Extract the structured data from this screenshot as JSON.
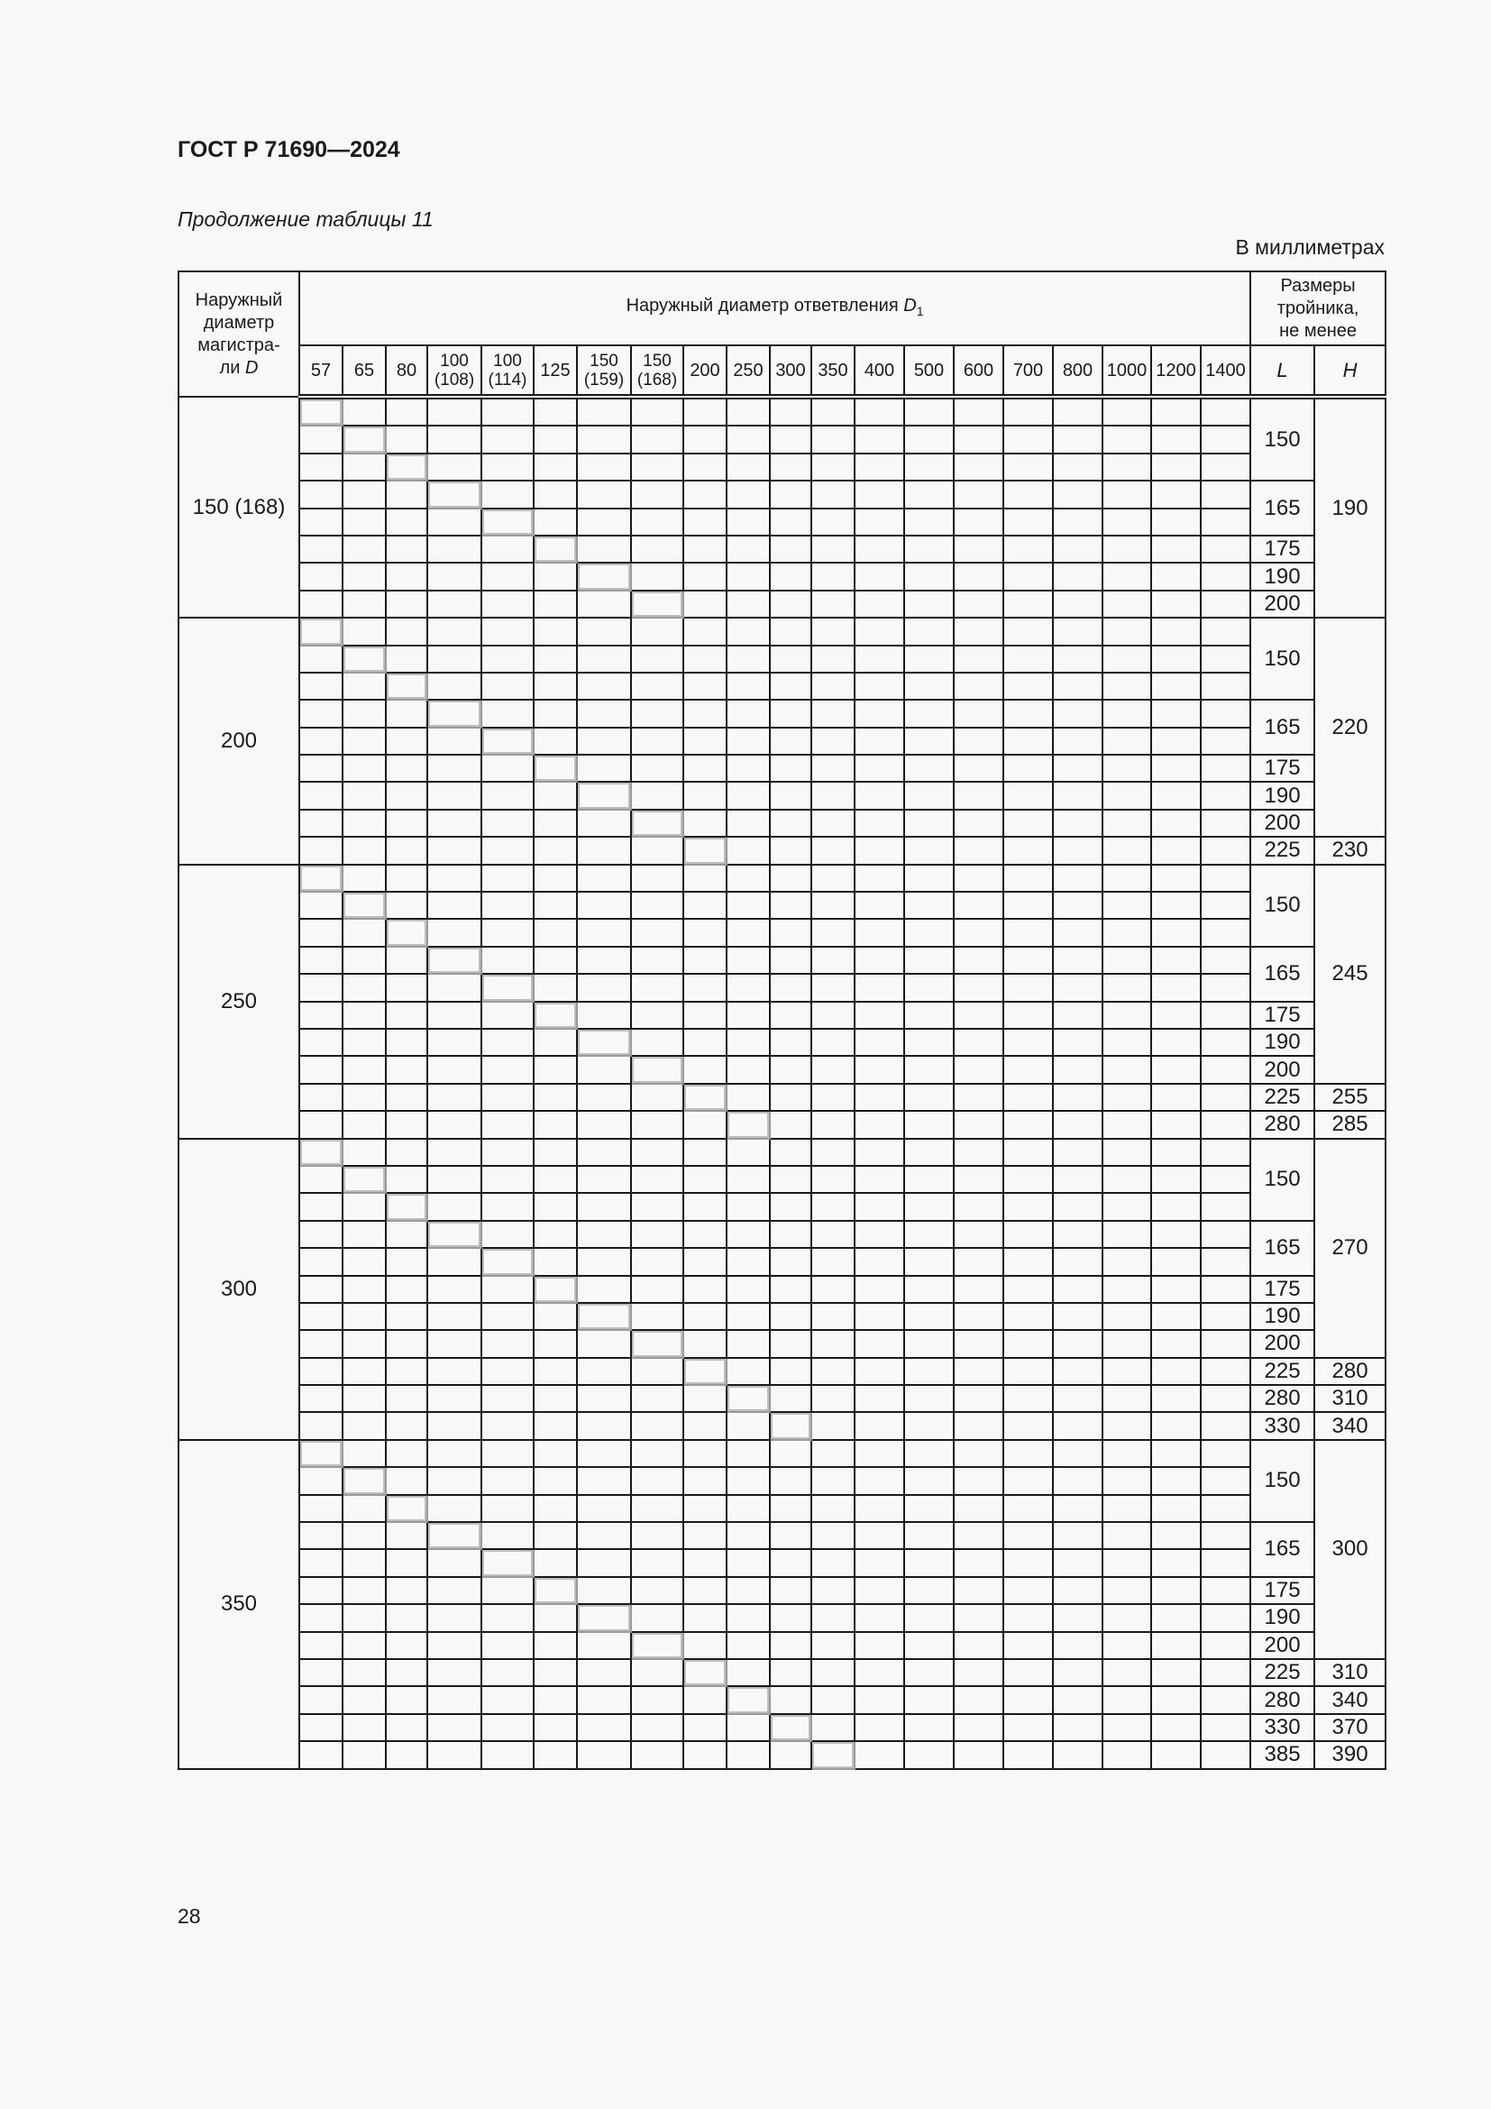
{
  "header": {
    "title": "ГОСТ Р 71690—2024",
    "subtitle": "Продолжение таблицы 11",
    "units": "В миллиметрах"
  },
  "table": {
    "col_main_diameter": [
      "Наружный",
      "диаметр",
      "магистра-",
      "ли"
    ],
    "col_main_diameter_symbol": "D",
    "col_branch": "Наружный диаметр ответвления",
    "col_branch_symbol": "D",
    "col_branch_subscript": "1",
    "col_sizes": [
      "Размеры",
      "тройника,",
      "не менее"
    ],
    "col_L": "L",
    "col_H": "H",
    "branch_columns": [
      [
        "57"
      ],
      [
        "65"
      ],
      [
        "80"
      ],
      [
        "100",
        "(108)"
      ],
      [
        "100",
        "(114)"
      ],
      [
        "125"
      ],
      [
        "150",
        "(159)"
      ],
      [
        "150",
        "(168)"
      ],
      [
        "200"
      ],
      [
        "250"
      ],
      [
        "300"
      ],
      [
        "350"
      ],
      [
        "400"
      ],
      [
        "500"
      ],
      [
        "600"
      ],
      [
        "700"
      ],
      [
        "800"
      ],
      [
        "1000"
      ],
      [
        "1200"
      ],
      [
        "1400"
      ]
    ],
    "groups": [
      {
        "D": "150 (168)",
        "rows": 8,
        "L": [
          [
            "150",
            3
          ],
          [
            "165",
            2
          ],
          [
            "175",
            1
          ],
          [
            "190",
            1
          ],
          [
            "200",
            1
          ]
        ],
        "H": [
          [
            "190",
            8
          ]
        ]
      },
      {
        "D": "200",
        "rows": 9,
        "L": [
          [
            "150",
            3
          ],
          [
            "165",
            2
          ],
          [
            "175",
            1
          ],
          [
            "190",
            1
          ],
          [
            "200",
            1
          ],
          [
            "225",
            1
          ]
        ],
        "H": [
          [
            "220",
            8
          ],
          [
            "230",
            1
          ]
        ]
      },
      {
        "D": "250",
        "rows": 10,
        "L": [
          [
            "150",
            3
          ],
          [
            "165",
            2
          ],
          [
            "175",
            1
          ],
          [
            "190",
            1
          ],
          [
            "200",
            1
          ],
          [
            "225",
            1
          ],
          [
            "280",
            1
          ]
        ],
        "H": [
          [
            "245",
            8
          ],
          [
            "255",
            1
          ],
          [
            "285",
            1
          ]
        ]
      },
      {
        "D": "300",
        "rows": 11,
        "L": [
          [
            "150",
            3
          ],
          [
            "165",
            2
          ],
          [
            "175",
            1
          ],
          [
            "190",
            1
          ],
          [
            "200",
            1
          ],
          [
            "225",
            1
          ],
          [
            "280",
            1
          ],
          [
            "330",
            1
          ]
        ],
        "H": [
          [
            "270",
            8
          ],
          [
            "280",
            1
          ],
          [
            "310",
            1
          ],
          [
            "340",
            1
          ]
        ]
      },
      {
        "D": "350",
        "rows": 12,
        "L": [
          [
            "150",
            3
          ],
          [
            "165",
            2
          ],
          [
            "175",
            1
          ],
          [
            "190",
            1
          ],
          [
            "200",
            1
          ],
          [
            "225",
            1
          ],
          [
            "280",
            1
          ],
          [
            "330",
            1
          ],
          [
            "385",
            1
          ]
        ],
        "H": [
          [
            "300",
            8
          ],
          [
            "310",
            1
          ],
          [
            "340",
            1
          ],
          [
            "370",
            1
          ],
          [
            "390",
            1
          ]
        ]
      }
    ],
    "highlight_pattern": "diagonal"
  },
  "footer": {
    "page_number": "28"
  }
}
